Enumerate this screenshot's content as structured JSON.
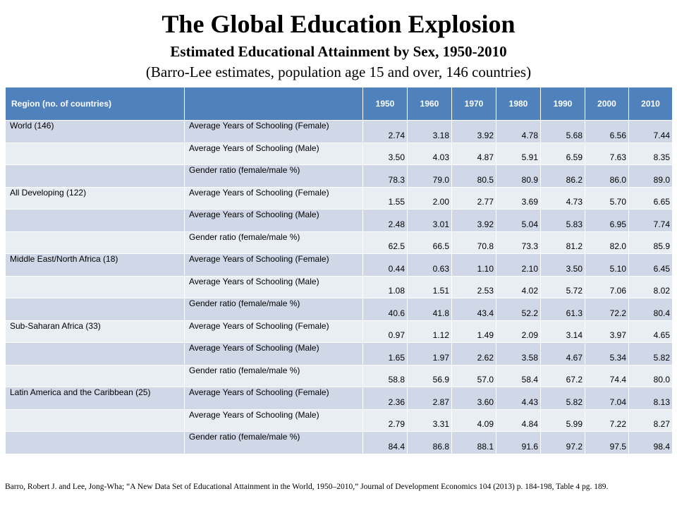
{
  "title": "The Global Education Explosion",
  "subtitle": "Estimated Educational Attainment by Sex, 1950-2010",
  "subnote": "(Barro-Lee estimates, population age 15 and over, 146 countries)",
  "table": {
    "header": {
      "region": "Region (no. of countries)",
      "measure": "",
      "years": [
        "1950",
        "1960",
        "1970",
        "1980",
        "1990",
        "2000",
        "2010"
      ]
    },
    "rows": [
      {
        "region": "World (146)",
        "measure": "Average Years of Schooling (Female)",
        "values": [
          "2.74",
          "3.18",
          "3.92",
          "4.78",
          "5.68",
          "6.56",
          "7.44"
        ]
      },
      {
        "region": "",
        "measure": "Average Years of Schooling (Male)",
        "values": [
          "3.50",
          "4.03",
          "4.87",
          "5.91",
          "6.59",
          "7.63",
          "8.35"
        ]
      },
      {
        "region": "",
        "measure": "Gender ratio (female/male %)",
        "values": [
          "78.3",
          "79.0",
          "80.5",
          "80.9",
          "86.2",
          "86.0",
          "89.0"
        ]
      },
      {
        "region": "All Developing (122)",
        "measure": "Average Years of Schooling (Female)",
        "values": [
          "1.55",
          "2.00",
          "2.77",
          "3.69",
          "4.73",
          "5.70",
          "6.65"
        ]
      },
      {
        "region": "",
        "measure": "Average Years of Schooling (Male)",
        "values": [
          "2.48",
          "3.01",
          "3.92",
          "5.04",
          "5.83",
          "6.95",
          "7.74"
        ]
      },
      {
        "region": "",
        "measure": "Gender ratio (female/male %)",
        "values": [
          "62.5",
          "66.5",
          "70.8",
          "73.3",
          "81.2",
          "82.0",
          "85.9"
        ]
      },
      {
        "region": "Middle East/North Africa (18)",
        "measure": "Average Years of Schooling (Female)",
        "values": [
          "0.44",
          "0.63",
          "1.10",
          "2.10",
          "3.50",
          "5.10",
          "6.45"
        ]
      },
      {
        "region": "",
        "measure": "Average Years of Schooling (Male)",
        "values": [
          "1.08",
          "1.51",
          "2.53",
          "4.02",
          "5.72",
          "7.06",
          "8.02"
        ]
      },
      {
        "region": "",
        "measure": "Gender ratio (female/male %)",
        "values": [
          "40.6",
          "41.8",
          "43.4",
          "52.2",
          "61.3",
          "72.2",
          "80.4"
        ]
      },
      {
        "region": "Sub-Saharan Africa (33)",
        "measure": "Average Years of Schooling (Female)",
        "values": [
          "0.97",
          "1.12",
          "1.49",
          "2.09",
          "3.14",
          "3.97",
          "4.65"
        ]
      },
      {
        "region": "",
        "measure": "Average Years of Schooling (Male)",
        "values": [
          "1.65",
          "1.97",
          "2.62",
          "3.58",
          "4.67",
          "5.34",
          "5.82"
        ]
      },
      {
        "region": "",
        "measure": "Gender ratio (female/male %)",
        "values": [
          "58.8",
          "56.9",
          "57.0",
          "58.4",
          "67.2",
          "74.4",
          "80.0"
        ]
      },
      {
        "region": "Latin America and the Caribbean (25)",
        "measure": "Average Years of Schooling (Female)",
        "values": [
          "2.36",
          "2.87",
          "3.60",
          "4.43",
          "5.82",
          "7.04",
          "8.13"
        ]
      },
      {
        "region": "",
        "measure": "Average Years of Schooling (Male)",
        "values": [
          "2.79",
          "3.31",
          "4.09",
          "4.84",
          "5.99",
          "7.22",
          "8.27"
        ]
      },
      {
        "region": "",
        "measure": "Gender ratio (female/male %)",
        "values": [
          "84.4",
          "86.8",
          "88.1",
          "91.6",
          "97.2",
          "97.5",
          "98.4"
        ]
      }
    ]
  },
  "source": "Barro, Robert J. and Lee, Jong-Wha; “A New Data Set of Educational Attainment in the World, 1950–2010,” Journal of Development Economics 104 (2013) p. 184-198, Table 4 pg. 189.",
  "colors": {
    "header_bg": "#4f81bd",
    "row_odd_bg": "#d0d8e8",
    "row_even_bg": "#e9edf4"
  }
}
